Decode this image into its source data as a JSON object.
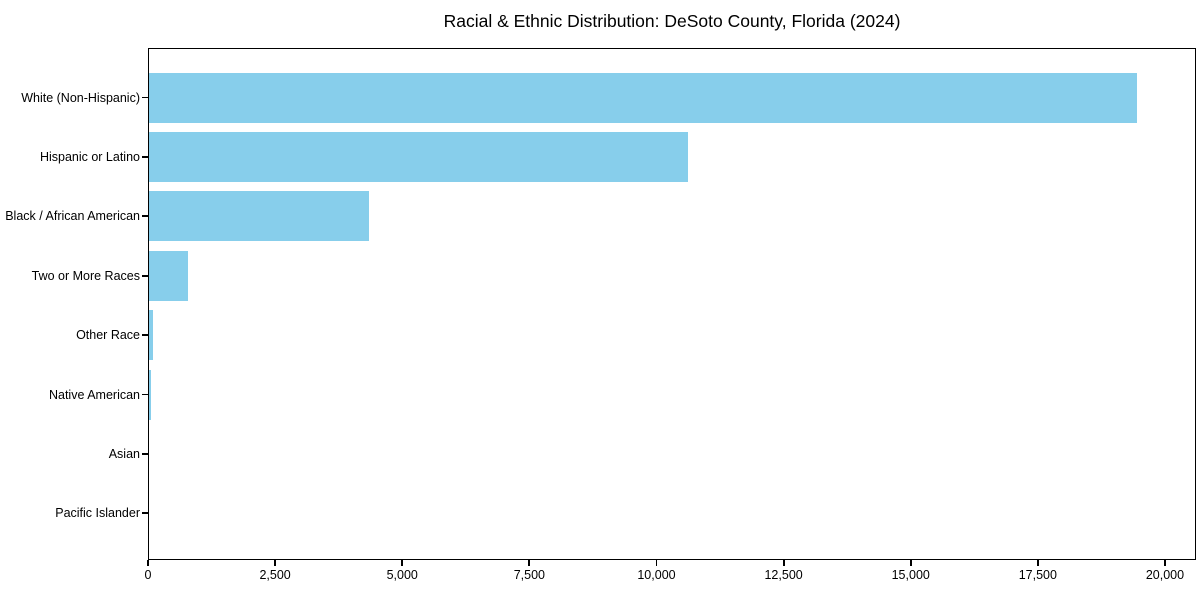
{
  "chart_data": {
    "type": "bar",
    "orientation": "horizontal",
    "title": "Racial & Ethnic Distribution: DeSoto County, Florida (2024)",
    "categories": [
      "White (Non-Hispanic)",
      "Hispanic or Latino",
      "Black / African American",
      "Two or More Races",
      "Other Race",
      "Native American",
      "Asian",
      "Pacific Islander"
    ],
    "values": [
      19450,
      10620,
      4350,
      790,
      100,
      60,
      25,
      10
    ],
    "bar_color": "#87ceeb",
    "background_color": "#ffffff",
    "axis_color": "#000000",
    "xlabel": "",
    "ylabel": "",
    "xlim": [
      0,
      20610
    ],
    "xtick_values": [
      0,
      2500,
      5000,
      7500,
      10000,
      12500,
      15000,
      17500,
      20000
    ],
    "xtick_labels": [
      "0",
      "2,500",
      "5,000",
      "7,500",
      "10,000",
      "12,500",
      "15,000",
      "17,500",
      "20,000"
    ],
    "grid": false,
    "legend": "none"
  }
}
